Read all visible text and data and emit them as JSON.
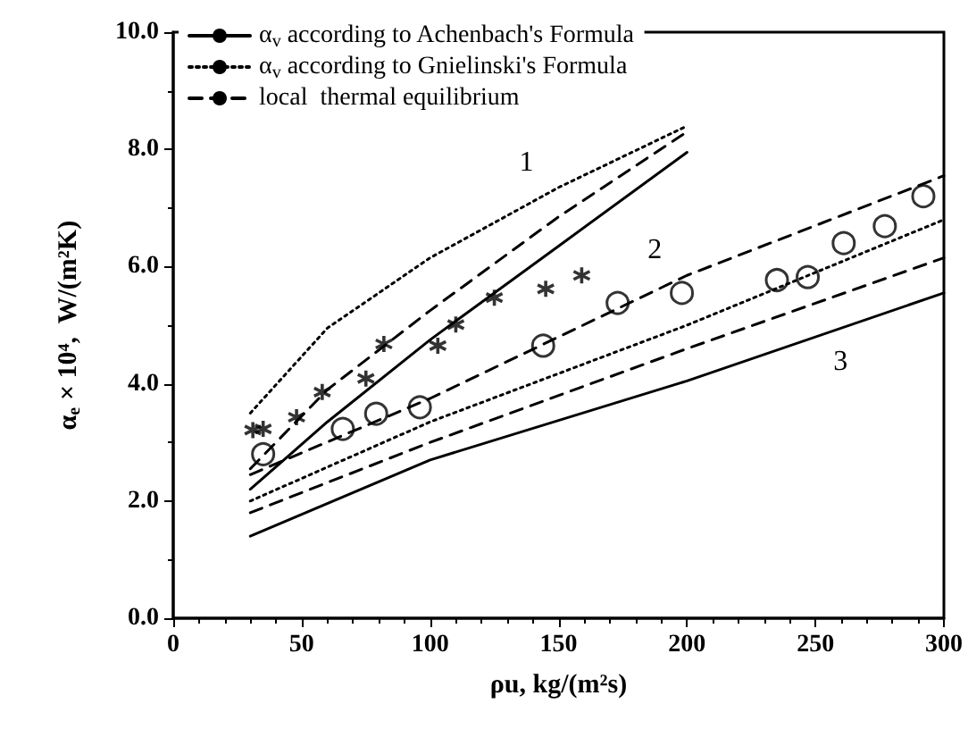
{
  "chart_data": {
    "type": "line",
    "xlabel": "ρu, kg/(m²s)",
    "ylabel": "α$_{e}$ × 10⁴,  W/(m²K)",
    "xlim": [
      0,
      300
    ],
    "xticks": [
      0,
      50,
      100,
      150,
      200,
      250,
      300
    ],
    "ylim": [
      0,
      10
    ],
    "yticks": [
      {
        "value": 0,
        "label": "0.0"
      },
      {
        "value": 2,
        "label": "2.0"
      },
      {
        "value": 4,
        "label": "4.0"
      },
      {
        "value": 6,
        "label": "6.0"
      },
      {
        "value": 8,
        "label": "8.0"
      },
      {
        "value": 10,
        "label": "10.0"
      }
    ],
    "grid": false,
    "legend": "top left",
    "marker": "none",
    "series": [
      {
        "name": "α$_{v}$ according to Achenbach's Formula",
        "color": "#000000",
        "line_style": "solid",
        "x": [
          30,
          60,
          100,
          150,
          200
        ],
        "values": [
          2.2,
          3.35,
          4.75,
          6.35,
          7.95
        ]
      },
      {
        "name": "α$_{v}$ according to Gnielinski's Formula",
        "color": "#000000",
        "line_style": "dotted",
        "x": [
          30,
          60,
          100,
          150,
          200
        ],
        "values": [
          3.5,
          4.95,
          6.15,
          7.35,
          8.4
        ]
      },
      {
        "name": "local  thermal equilibrium",
        "color": "#000000",
        "line_style": "dashed",
        "x": [
          30,
          60,
          100,
          150,
          200
        ],
        "values": [
          2.55,
          3.9,
          5.25,
          6.85,
          8.3
        ]
      },
      {
        "color": "#000000",
        "line_style": "solid",
        "x": [
          30,
          100,
          200,
          300
        ],
        "values": [
          1.4,
          2.7,
          4.05,
          5.55
        ]
      },
      {
        "color": "#000000",
        "line_style": "dotted",
        "x": [
          30,
          100,
          200,
          300
        ],
        "values": [
          2.0,
          3.35,
          5.0,
          6.8
        ]
      },
      {
        "color": "#000000",
        "line_style": "dashed",
        "x": [
          30,
          100,
          200,
          300
        ],
        "values": [
          2.45,
          3.75,
          5.85,
          7.55
        ]
      },
      {
        "color": "#000000",
        "line_style": "dashed",
        "x": [
          30,
          100,
          200,
          300
        ],
        "values": [
          1.8,
          3.0,
          4.6,
          6.15
        ]
      },
      {
        "type": "scatter",
        "marker": "cross",
        "color": "#000000",
        "x": [
          31,
          35,
          48,
          58,
          75,
          82,
          103,
          110,
          125,
          145,
          159
        ],
        "values": [
          3.21,
          3.23,
          3.43,
          3.86,
          4.09,
          4.68,
          4.65,
          5.01,
          5.47,
          5.62,
          5.85
        ]
      },
      {
        "type": "scatter",
        "marker": "circle",
        "color": "#000000",
        "x": [
          35,
          66,
          79,
          96,
          144,
          173,
          198,
          235,
          247,
          261,
          277,
          292
        ],
        "values": [
          2.8,
          3.23,
          3.49,
          3.6,
          4.65,
          5.38,
          5.55,
          5.77,
          5.82,
          6.4,
          6.69,
          7.2
        ]
      }
    ],
    "annotations": [
      {
        "text": "1",
        "x": 150,
        "y": 7.35
      },
      {
        "text": "2",
        "x": 200,
        "y": 5.85
      },
      {
        "text": "3",
        "x": 250,
        "y": 4.8
      }
    ]
  }
}
